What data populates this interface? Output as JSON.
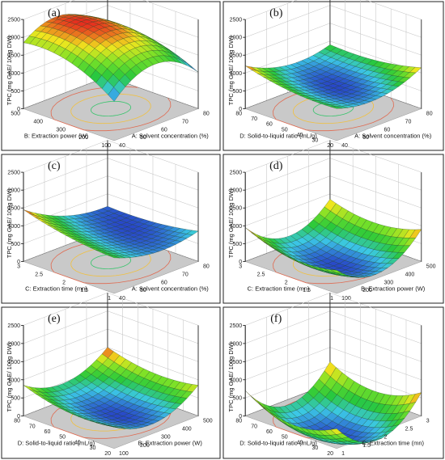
{
  "chart_data": [
    {
      "type": "surface3d",
      "panel_label": "(a)",
      "zlabel": "TPC (mg GAE/ 100g DW)",
      "zticks": [
        "0",
        "500",
        "1000",
        "1500",
        "2000",
        "2500"
      ],
      "xlabel": "A: Solvent concentration (%)",
      "xticks": [
        "40",
        "50",
        "60",
        "70",
        "80"
      ],
      "ylabel": "B: Extraction power (W)",
      "yticks": [
        "100",
        "200",
        "300",
        "400",
        "500"
      ],
      "xlim": [
        40,
        80
      ],
      "ylim": [
        100,
        500
      ],
      "zlim": [
        0,
        2500
      ],
      "surface": {
        "grid": 15,
        "c00": 1100,
        "c10": 1020,
        "c01": 1850,
        "c11": 1240,
        "curv_x": 650,
        "curv_y": 300
      }
    },
    {
      "type": "surface3d",
      "panel_label": "(b)",
      "zlabel": "TPC (mg GAE/ 100g DW)",
      "zticks": [
        "0",
        "500",
        "1000",
        "1500",
        "2000",
        "2500"
      ],
      "xlabel": "A: Solvent concentration (%)",
      "xticks": [
        "40",
        "50",
        "60",
        "70",
        "80"
      ],
      "ylabel": "D: Solid-to-liquid ratio (mL/g)",
      "yticks": [
        "20",
        "30",
        "40",
        "50",
        "60",
        "70",
        "80"
      ],
      "xlim": [
        40,
        80
      ],
      "ylim": [
        20,
        80
      ],
      "zlim": [
        0,
        2500
      ],
      "surface": {
        "grid": 15,
        "c00": 900,
        "c10": 1150,
        "c01": 1200,
        "c11": 900,
        "curv_x": -280,
        "curv_y": -120
      }
    },
    {
      "type": "surface3d",
      "panel_label": "(c)",
      "zlabel": "TPC (mg GAE/ 100g DW)",
      "zticks": [
        "0",
        "500",
        "1000",
        "1500",
        "2000",
        "2500"
      ],
      "xlabel": "A: Solvent concentration (%)",
      "xticks": [
        "40",
        "50",
        "60",
        "70",
        "80"
      ],
      "ylabel": "C: Extraction time (mn)",
      "yticks": [
        "1",
        "1.5",
        "2",
        "2.5",
        "3"
      ],
      "xlim": [
        40,
        80
      ],
      "ylim": [
        1,
        3
      ],
      "zlim": [
        0,
        2500
      ],
      "surface": {
        "grid": 15,
        "c00": 1000,
        "c10": 850,
        "c01": 1450,
        "c11": 650,
        "curv_x": -220,
        "curv_y": -90
      }
    },
    {
      "type": "surface3d",
      "panel_label": "(d)",
      "zlabel": "TPC (mg GAE/ 100g DW)",
      "zticks": [
        "0",
        "500",
        "1000",
        "1500",
        "2000",
        "2500"
      ],
      "xlabel": "B: Extraction power (W)",
      "xticks": [
        "100",
        "200",
        "300",
        "400",
        "500"
      ],
      "ylabel": "C: Extraction time (mn)",
      "yticks": [
        "1",
        "1.5",
        "2",
        "2.5",
        "3"
      ],
      "xlim": [
        100,
        500
      ],
      "ylim": [
        1,
        3
      ],
      "zlim": [
        0,
        2500
      ],
      "surface": {
        "grid": 15,
        "c00": 650,
        "c10": 900,
        "c01": 950,
        "c11": 850,
        "curv_x": -650,
        "curv_y": -250
      }
    },
    {
      "type": "surface3d",
      "panel_label": "(e)",
      "zlabel": "TPC (mg GAE/ 100g DW)",
      "zticks": [
        "0",
        "500",
        "1000",
        "1500",
        "2000",
        "2500"
      ],
      "xlabel": "B: Extraction power (W)",
      "xticks": [
        "100",
        "200",
        "300",
        "400",
        "500"
      ],
      "ylabel": "D: Solid-to-liquid ratio (mL/g)",
      "yticks": [
        "20",
        "30",
        "40",
        "50",
        "60",
        "70",
        "80"
      ],
      "xlim": [
        100,
        500
      ],
      "ylim": [
        20,
        80
      ],
      "zlim": [
        0,
        2500
      ],
      "surface": {
        "grid": 15,
        "c00": 600,
        "c10": 850,
        "c01": 850,
        "c11": 1000,
        "curv_x": -450,
        "curv_y": -180
      }
    },
    {
      "type": "surface3d",
      "panel_label": "(f)",
      "zlabel": "TPC (mg GAE/ 100g DW)",
      "zticks": [
        "0",
        "500",
        "1000",
        "1500",
        "2000",
        "2500"
      ],
      "xlabel": "C: Extraction time (mn)",
      "xticks": [
        "1",
        "1.5",
        "2",
        "2.5",
        "3"
      ],
      "ylabel": "D: Solid-to-liquid ratio (mL/g)",
      "yticks": [
        "20",
        "30",
        "40",
        "50",
        "60",
        "70",
        "80"
      ],
      "xlim": [
        1,
        3
      ],
      "ylim": [
        20,
        80
      ],
      "zlim": [
        0,
        2500
      ],
      "surface": {
        "grid": 15,
        "c00": 550,
        "c10": 650,
        "c01": 700,
        "c11": 600,
        "curv_x": -800,
        "curv_y": -400
      }
    }
  ]
}
